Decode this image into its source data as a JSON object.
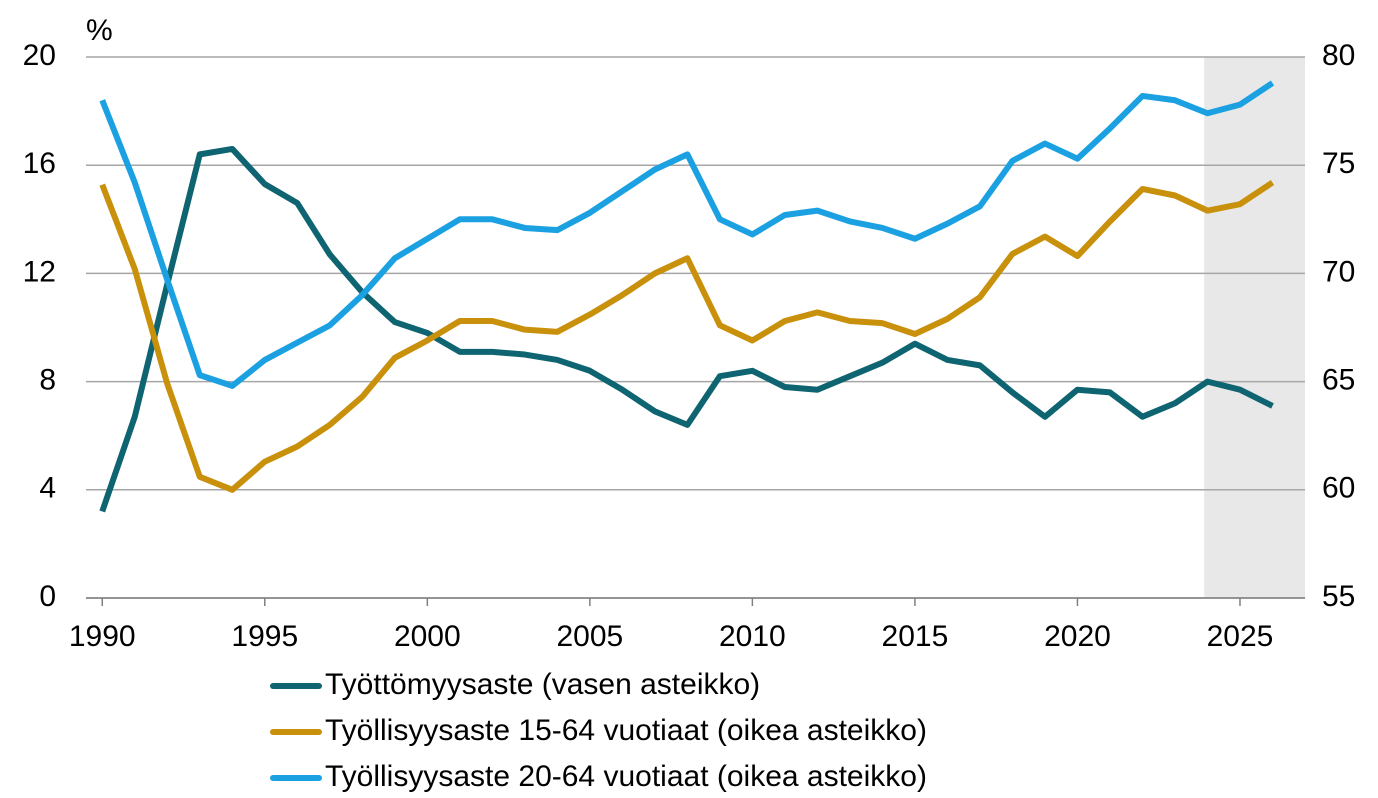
{
  "chart_data": {
    "type": "line",
    "y_label": "%",
    "x": [
      1990,
      1991,
      1992,
      1993,
      1994,
      1995,
      1996,
      1997,
      1998,
      1999,
      2000,
      2001,
      2002,
      2003,
      2004,
      2005,
      2006,
      2007,
      2008,
      2009,
      2010,
      2011,
      2012,
      2013,
      2014,
      2015,
      2016,
      2017,
      2018,
      2019,
      2020,
      2021,
      2022,
      2023,
      2024,
      2025,
      2026
    ],
    "xlim": [
      1989.5,
      2027
    ],
    "xticks": [
      1990,
      1995,
      2000,
      2005,
      2010,
      2015,
      2020,
      2025
    ],
    "ylim": [
      0,
      20
    ],
    "yticks": [
      0,
      4,
      8,
      12,
      16,
      20
    ],
    "y2lim": [
      55,
      80
    ],
    "y2ticks": [
      55,
      60,
      65,
      70,
      75,
      80
    ],
    "grid": true,
    "shaded_xrange": [
      2023.9,
      2027
    ],
    "shade_color": "#e8e8e8",
    "legend": "bottom",
    "series": [
      {
        "name": "Työttömyysaste (vasen asteikko)",
        "color": "#0e6470",
        "values": [
          3.2,
          6.7,
          11.6,
          16.4,
          16.6,
          15.3,
          14.6,
          12.7,
          11.3,
          10.2,
          9.8,
          9.1,
          9.1,
          9.0,
          8.8,
          8.4,
          7.7,
          6.9,
          6.4,
          8.2,
          8.4,
          7.8,
          7.7,
          8.2,
          8.7,
          9.4,
          8.8,
          8.6,
          7.6,
          6.7,
          7.7,
          7.6,
          6.7,
          7.2,
          8.0,
          7.7,
          7.1
        ]
      },
      {
        "name": "Työllisyysaste 15-64 vuotiaat (oikea asteikko)",
        "color": "#c9900c",
        "axis": "y2",
        "values": [
          74.1,
          70.2,
          64.9,
          60.6,
          60.0,
          61.3,
          62.0,
          63.0,
          64.3,
          66.1,
          66.9,
          67.8,
          67.8,
          67.4,
          67.3,
          68.1,
          69.0,
          70.0,
          70.7,
          67.6,
          66.9,
          67.8,
          68.2,
          67.8,
          67.7,
          67.2,
          67.9,
          68.9,
          70.9,
          71.7,
          70.8,
          72.4,
          73.9,
          73.6,
          72.9,
          73.2,
          74.2
        ]
      },
      {
        "name": "Työllisyysaste 20-64 vuotiaat (oikea asteikko)",
        "color": "#1ba1e2",
        "axis": "y2",
        "values": [
          78.0,
          74.2,
          69.7,
          65.3,
          64.8,
          66.0,
          66.8,
          67.6,
          69.0,
          70.7,
          71.6,
          72.5,
          72.5,
          72.1,
          72.0,
          72.8,
          73.8,
          74.8,
          75.5,
          72.5,
          71.8,
          72.7,
          72.9,
          72.4,
          72.1,
          71.6,
          72.3,
          73.1,
          75.2,
          76.0,
          75.3,
          76.7,
          78.2,
          78.0,
          77.4,
          77.8,
          78.8
        ]
      }
    ]
  }
}
